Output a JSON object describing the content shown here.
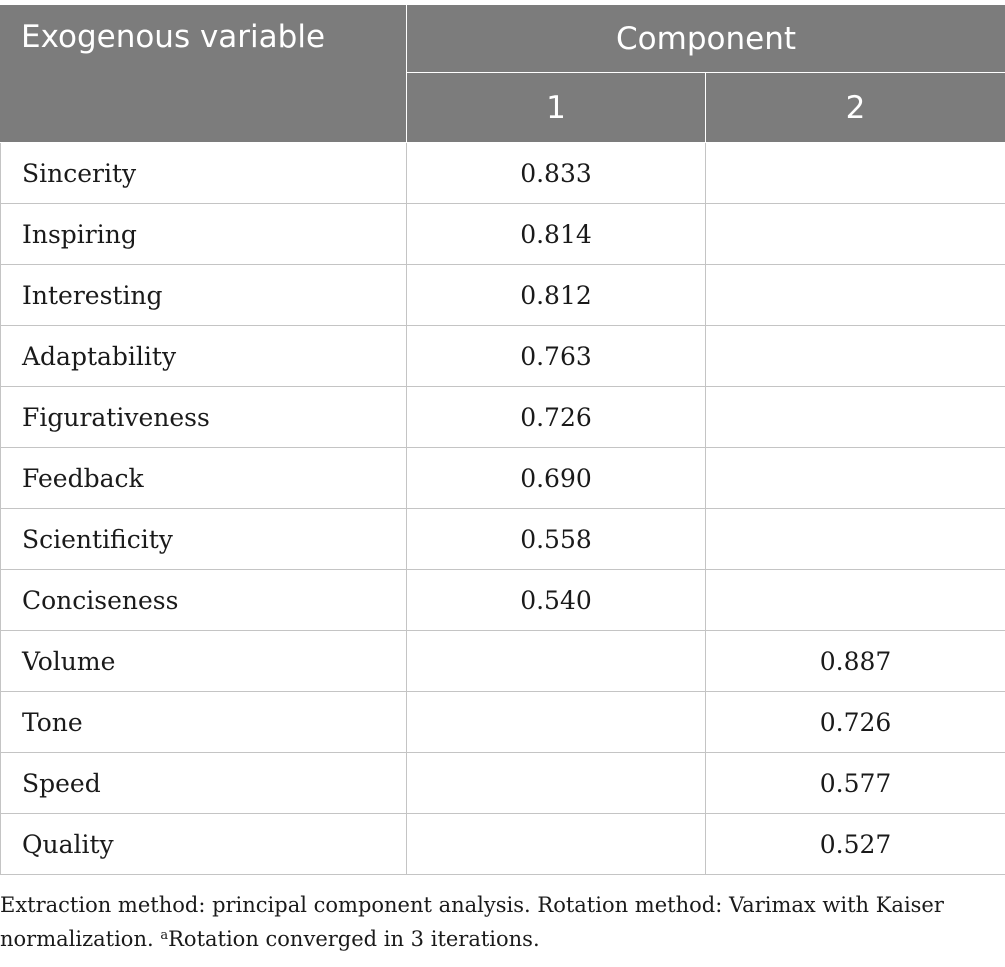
{
  "table": {
    "header": {
      "var_label": "Exogenous variable",
      "component_label": "Component",
      "component_numbers": [
        "1",
        "2"
      ]
    },
    "rows": [
      {
        "variable": "Sincerity",
        "c1": "0.833",
        "c2": ""
      },
      {
        "variable": "Inspiring",
        "c1": "0.814",
        "c2": ""
      },
      {
        "variable": "Interesting",
        "c1": "0.812",
        "c2": ""
      },
      {
        "variable": "Adaptability",
        "c1": "0.763",
        "c2": ""
      },
      {
        "variable": "Figurativeness",
        "c1": "0.726",
        "c2": ""
      },
      {
        "variable": "Feedback",
        "c1": "0.690",
        "c2": ""
      },
      {
        "variable": "Scientificity",
        "c1": "0.558",
        "c2": ""
      },
      {
        "variable": "Conciseness",
        "c1": "0.540",
        "c2": ""
      },
      {
        "variable": "Volume",
        "c1": "",
        "c2": "0.887"
      },
      {
        "variable": "Tone",
        "c1": "",
        "c2": "0.726"
      },
      {
        "variable": "Speed",
        "c1": "",
        "c2": "0.577"
      },
      {
        "variable": "Quality",
        "c1": "",
        "c2": "0.527"
      }
    ]
  },
  "footnote": {
    "text_main": "Extraction method: principal component analysis. Rotation method: Varimax with Kaiser normalization. ",
    "marker": "a",
    "text_tail": "Rotation converged in 3 iterations."
  },
  "colors": {
    "header_bg": "#7c7c7c",
    "header_text": "#ffffff",
    "grid_line": "#c4c4c4"
  }
}
